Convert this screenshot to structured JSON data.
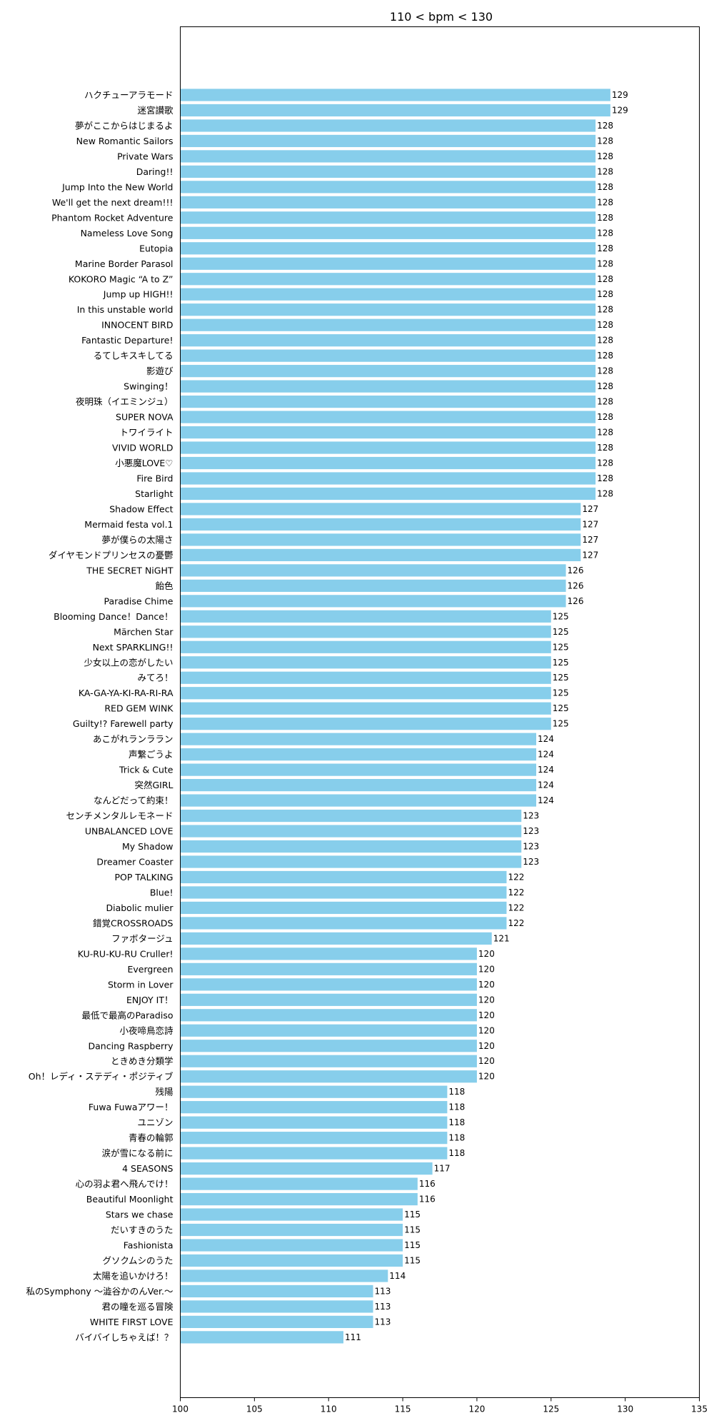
{
  "chart_data": {
    "type": "bar",
    "orientation": "horizontal",
    "title": "110 < bpm < 130",
    "xlabel": "",
    "ylabel": "",
    "xlim": [
      100,
      135
    ],
    "xticks": [
      "100",
      "105",
      "110",
      "115",
      "120",
      "125",
      "130",
      "135"
    ],
    "grid": false,
    "bar_color": "#87CEEB",
    "categories": [
      "ハクチューアラモード",
      "迷宮讃歌",
      "夢がここからはじまるよ",
      "New Romantic Sailors",
      "Private Wars",
      "Daring!!",
      "Jump Into the New World",
      "We'll get the next dream!!!",
      "Phantom Rocket Adventure",
      "Nameless Love Song",
      "Eutopia",
      "Marine Border Parasol",
      "KOKORO Magic “A to Z”",
      "Jump up HIGH!!",
      "In this unstable world",
      "INNOCENT BIRD",
      "Fantastic Departure!",
      "るてしキスキしてる",
      "影遊び",
      "Swinging！",
      "夜明珠（イエミンジュ）",
      "SUPER NOVA",
      "トワイライト",
      "VIVID WORLD",
      "小悪魔LOVE♡",
      "Fire Bird",
      "Starlight",
      "Shadow Effect",
      "Mermaid festa vol.1",
      "夢が僕らの太陽さ",
      "ダイヤモンドプリンセスの憂鬱",
      "THE SECRET NiGHT",
      "飴色",
      "Paradise Chime",
      "Blooming Dance！Dance！",
      "Märchen Star",
      "Next SPARKLING!!",
      "少女以上の恋がしたい",
      "みてろ！",
      "KA-GA-YA-KI-RA-RI-RA",
      "RED GEM WINK",
      "Guilty!? Farewell party",
      "あこがれランララン",
      "声繋ごうよ",
      "Trick & Cute",
      "突然GIRL",
      "なんどだって約束！",
      "センチメンタルレモネード",
      "UNBALANCED LOVE",
      "My Shadow",
      "Dreamer Coaster",
      "POP TALKING",
      "Blue!",
      "Diabolic mulier",
      "錯覚CROSSROADS",
      "ファボタージュ",
      "KU-RU-KU-RU Cruller!",
      "Evergreen",
      "Storm in Lover",
      "ENJOY IT！",
      "最低で最高のParadiso",
      "小夜啼鳥恋詩",
      "Dancing Raspberry",
      "ときめき分類学",
      "Oh！レディ・ステディ・ポジティブ",
      "残陽",
      "Fuwa Fuwaアワー！",
      "ユニゾン",
      "青春の輪郭",
      "涙が雪になる前に",
      "4 SEASONS",
      "心の羽よ君へ飛んでけ！",
      "Beautiful Moonlight",
      "Stars we chase",
      "だいすきのうた",
      "Fashionista",
      "グソクムシのうた",
      "太陽を追いかけろ！",
      "私のSymphony ～澁谷かのんVer.～",
      "君の瞳を巡る冒険",
      "WHITE FIRST LOVE",
      "バイバイしちゃえば！？"
    ],
    "values": [
      129,
      129,
      128,
      128,
      128,
      128,
      128,
      128,
      128,
      128,
      128,
      128,
      128,
      128,
      128,
      128,
      128,
      128,
      128,
      128,
      128,
      128,
      128,
      128,
      128,
      128,
      128,
      127,
      127,
      127,
      127,
      126,
      126,
      126,
      125,
      125,
      125,
      125,
      125,
      125,
      125,
      125,
      124,
      124,
      124,
      124,
      124,
      123,
      123,
      123,
      123,
      122,
      122,
      122,
      122,
      121,
      120,
      120,
      120,
      120,
      120,
      120,
      120,
      120,
      120,
      118,
      118,
      118,
      118,
      118,
      117,
      116,
      116,
      115,
      115,
      115,
      115,
      114,
      113,
      113,
      113,
      111
    ]
  }
}
